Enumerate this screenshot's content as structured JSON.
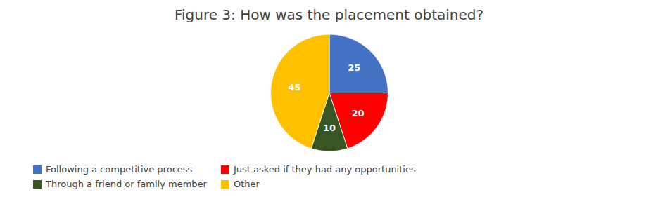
{
  "chart_data": {
    "type": "pie",
    "title": "Figure 3: How was the placement obtained?",
    "categories": [
      "Following a competitive process",
      "Just asked if they had any opportunities",
      "Through a friend or family member",
      "Other"
    ],
    "values": [
      25,
      20,
      10,
      45
    ],
    "colors": [
      "#4472C4",
      "#FF0000",
      "#375623",
      "#FFC000"
    ],
    "data_labels": true,
    "legend": "lower left"
  }
}
